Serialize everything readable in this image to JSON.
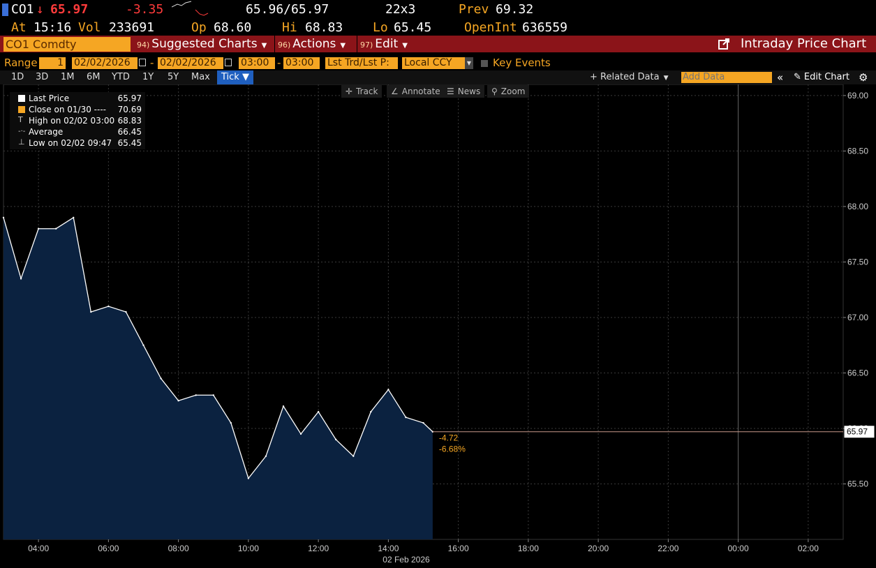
{
  "quote": {
    "ticker": "CO1",
    "arrow": "↓",
    "last": "65.97",
    "change": "-3.35",
    "bid_ask": "65.96/65.97",
    "size": "22x3",
    "prev_label": "Prev",
    "prev": "69.32",
    "at_label": "At",
    "time": "15:16",
    "vol_label": "Vol",
    "volume": "233691",
    "op_label": "Op",
    "open": "68.60",
    "hi_label": "Hi",
    "high": "68.83",
    "lo_label": "Lo",
    "low": "65.45",
    "oi_label": "OpenInt",
    "open_interest": "636559"
  },
  "command_bar": {
    "security": "CO1 Comdty",
    "menus": [
      {
        "num": "94)",
        "label": "Suggested Charts"
      },
      {
        "num": "96)",
        "label": "Actions"
      },
      {
        "num": "97)",
        "label": "Edit"
      }
    ],
    "title": "Intraday Price Chart"
  },
  "range_row": {
    "range_label": "Range",
    "range_value": "1",
    "start_date": "02/02/2026",
    "end_date": "02/02/2026",
    "start_time": "03:00",
    "end_time": "03:00",
    "field": "Lst Trd/Lst P:",
    "currency": "Local CCY",
    "key_events": "Key Events"
  },
  "period_tabs": [
    "1D",
    "3D",
    "1M",
    "6M",
    "YTD",
    "1Y",
    "5Y",
    "Max"
  ],
  "active_tab": "Tick ▼",
  "toolbar": {
    "related_data": "+ Related Data",
    "add_data_placeholder": "Add Data",
    "edit_chart": "Edit Chart"
  },
  "chart_tools": [
    "Track",
    "Annotate",
    "News",
    "Zoom"
  ],
  "legend": [
    {
      "label": "Last Price",
      "value": "65.97",
      "color": "#ffffff"
    },
    {
      "label": "Close on 01/30 ----",
      "value": "70.69",
      "color": "#f5a623"
    },
    {
      "label": "High on 02/02 03:00",
      "value": "68.83",
      "color": "#cccccc"
    },
    {
      "label": "Average",
      "value": "66.45",
      "color": "#cccccc"
    },
    {
      "label": "Low on 02/02 09:47",
      "value": "65.45",
      "color": "#cccccc"
    }
  ],
  "colors": {
    "amber": "#f5a623",
    "command_bar": "#8b1419",
    "area_fill": "#0b2240",
    "price_line": "#ffffff",
    "last_line": "#c99a8a",
    "down": "#ff3b3b"
  },
  "chart_data": {
    "type": "area",
    "x_unit": "time of day",
    "x": [
      "03:00",
      "03:30",
      "04:00",
      "04:30",
      "05:00",
      "05:30",
      "06:00",
      "06:30",
      "07:00",
      "07:30",
      "08:00",
      "08:30",
      "09:00",
      "09:30",
      "10:00",
      "10:30",
      "11:00",
      "11:30",
      "12:00",
      "12:30",
      "13:00",
      "13:30",
      "14:00",
      "14:30",
      "15:00",
      "15:16"
    ],
    "y": [
      67.9,
      67.35,
      67.8,
      67.8,
      67.9,
      67.05,
      67.1,
      67.05,
      66.75,
      66.45,
      66.25,
      66.3,
      66.3,
      66.05,
      65.55,
      65.75,
      66.2,
      65.95,
      66.15,
      65.9,
      65.75,
      66.15,
      66.35,
      66.1,
      66.05,
      65.97
    ],
    "y_ticks": [
      65.5,
      66.0,
      66.5,
      67.0,
      67.5,
      68.0,
      68.5,
      69.0
    ],
    "ylim": [
      65.0,
      69.1
    ],
    "x_ticks": [
      "04:00",
      "06:00",
      "08:00",
      "10:00",
      "12:00",
      "14:00",
      "16:00",
      "18:00",
      "20:00",
      "22:00",
      "00:00",
      "02:00"
    ],
    "xlabel": "02 Feb 2026",
    "last_value_label": "65.97",
    "change_annotation": "-4.72",
    "pct_annotation": "-6.68%",
    "grid": true
  }
}
